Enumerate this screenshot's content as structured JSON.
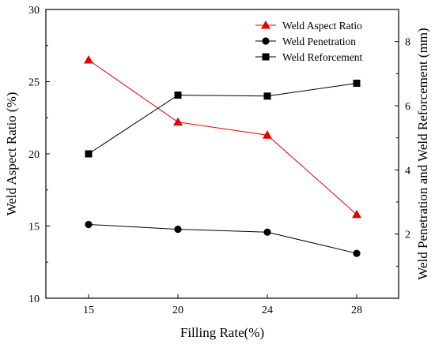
{
  "chart_data": {
    "type": "line",
    "x_categories": [
      "15",
      "20",
      "24",
      "28"
    ],
    "xlabel": "Filling Rate(%)",
    "ylabel_left": "Weld Aspect Ratio (%)",
    "ylabel_right": "Weld Penetration and Weld Reforcement (mm)",
    "ylim_left": [
      10,
      30
    ],
    "yticks_left": [
      "10",
      "15",
      "20",
      "25",
      "30"
    ],
    "ylim_right": [
      0,
      9
    ],
    "yticks_right": [
      "2",
      "4",
      "6",
      "8"
    ],
    "grid": false,
    "legend_position": "top-right",
    "series": [
      {
        "name": "Weld Aspect Ratio",
        "axis": "left",
        "color": "#e60000",
        "marker": "triangle",
        "values": [
          26.5,
          22.2,
          21.3,
          15.8
        ]
      },
      {
        "name": "Weld Penetration",
        "axis": "right",
        "color": "#000000",
        "marker": "circle",
        "values": [
          2.3,
          2.15,
          2.06,
          1.4
        ]
      },
      {
        "name": "Weld Reforcement",
        "axis": "right",
        "color": "#000000",
        "marker": "square",
        "values": [
          4.5,
          6.33,
          6.3,
          6.7
        ]
      }
    ]
  }
}
